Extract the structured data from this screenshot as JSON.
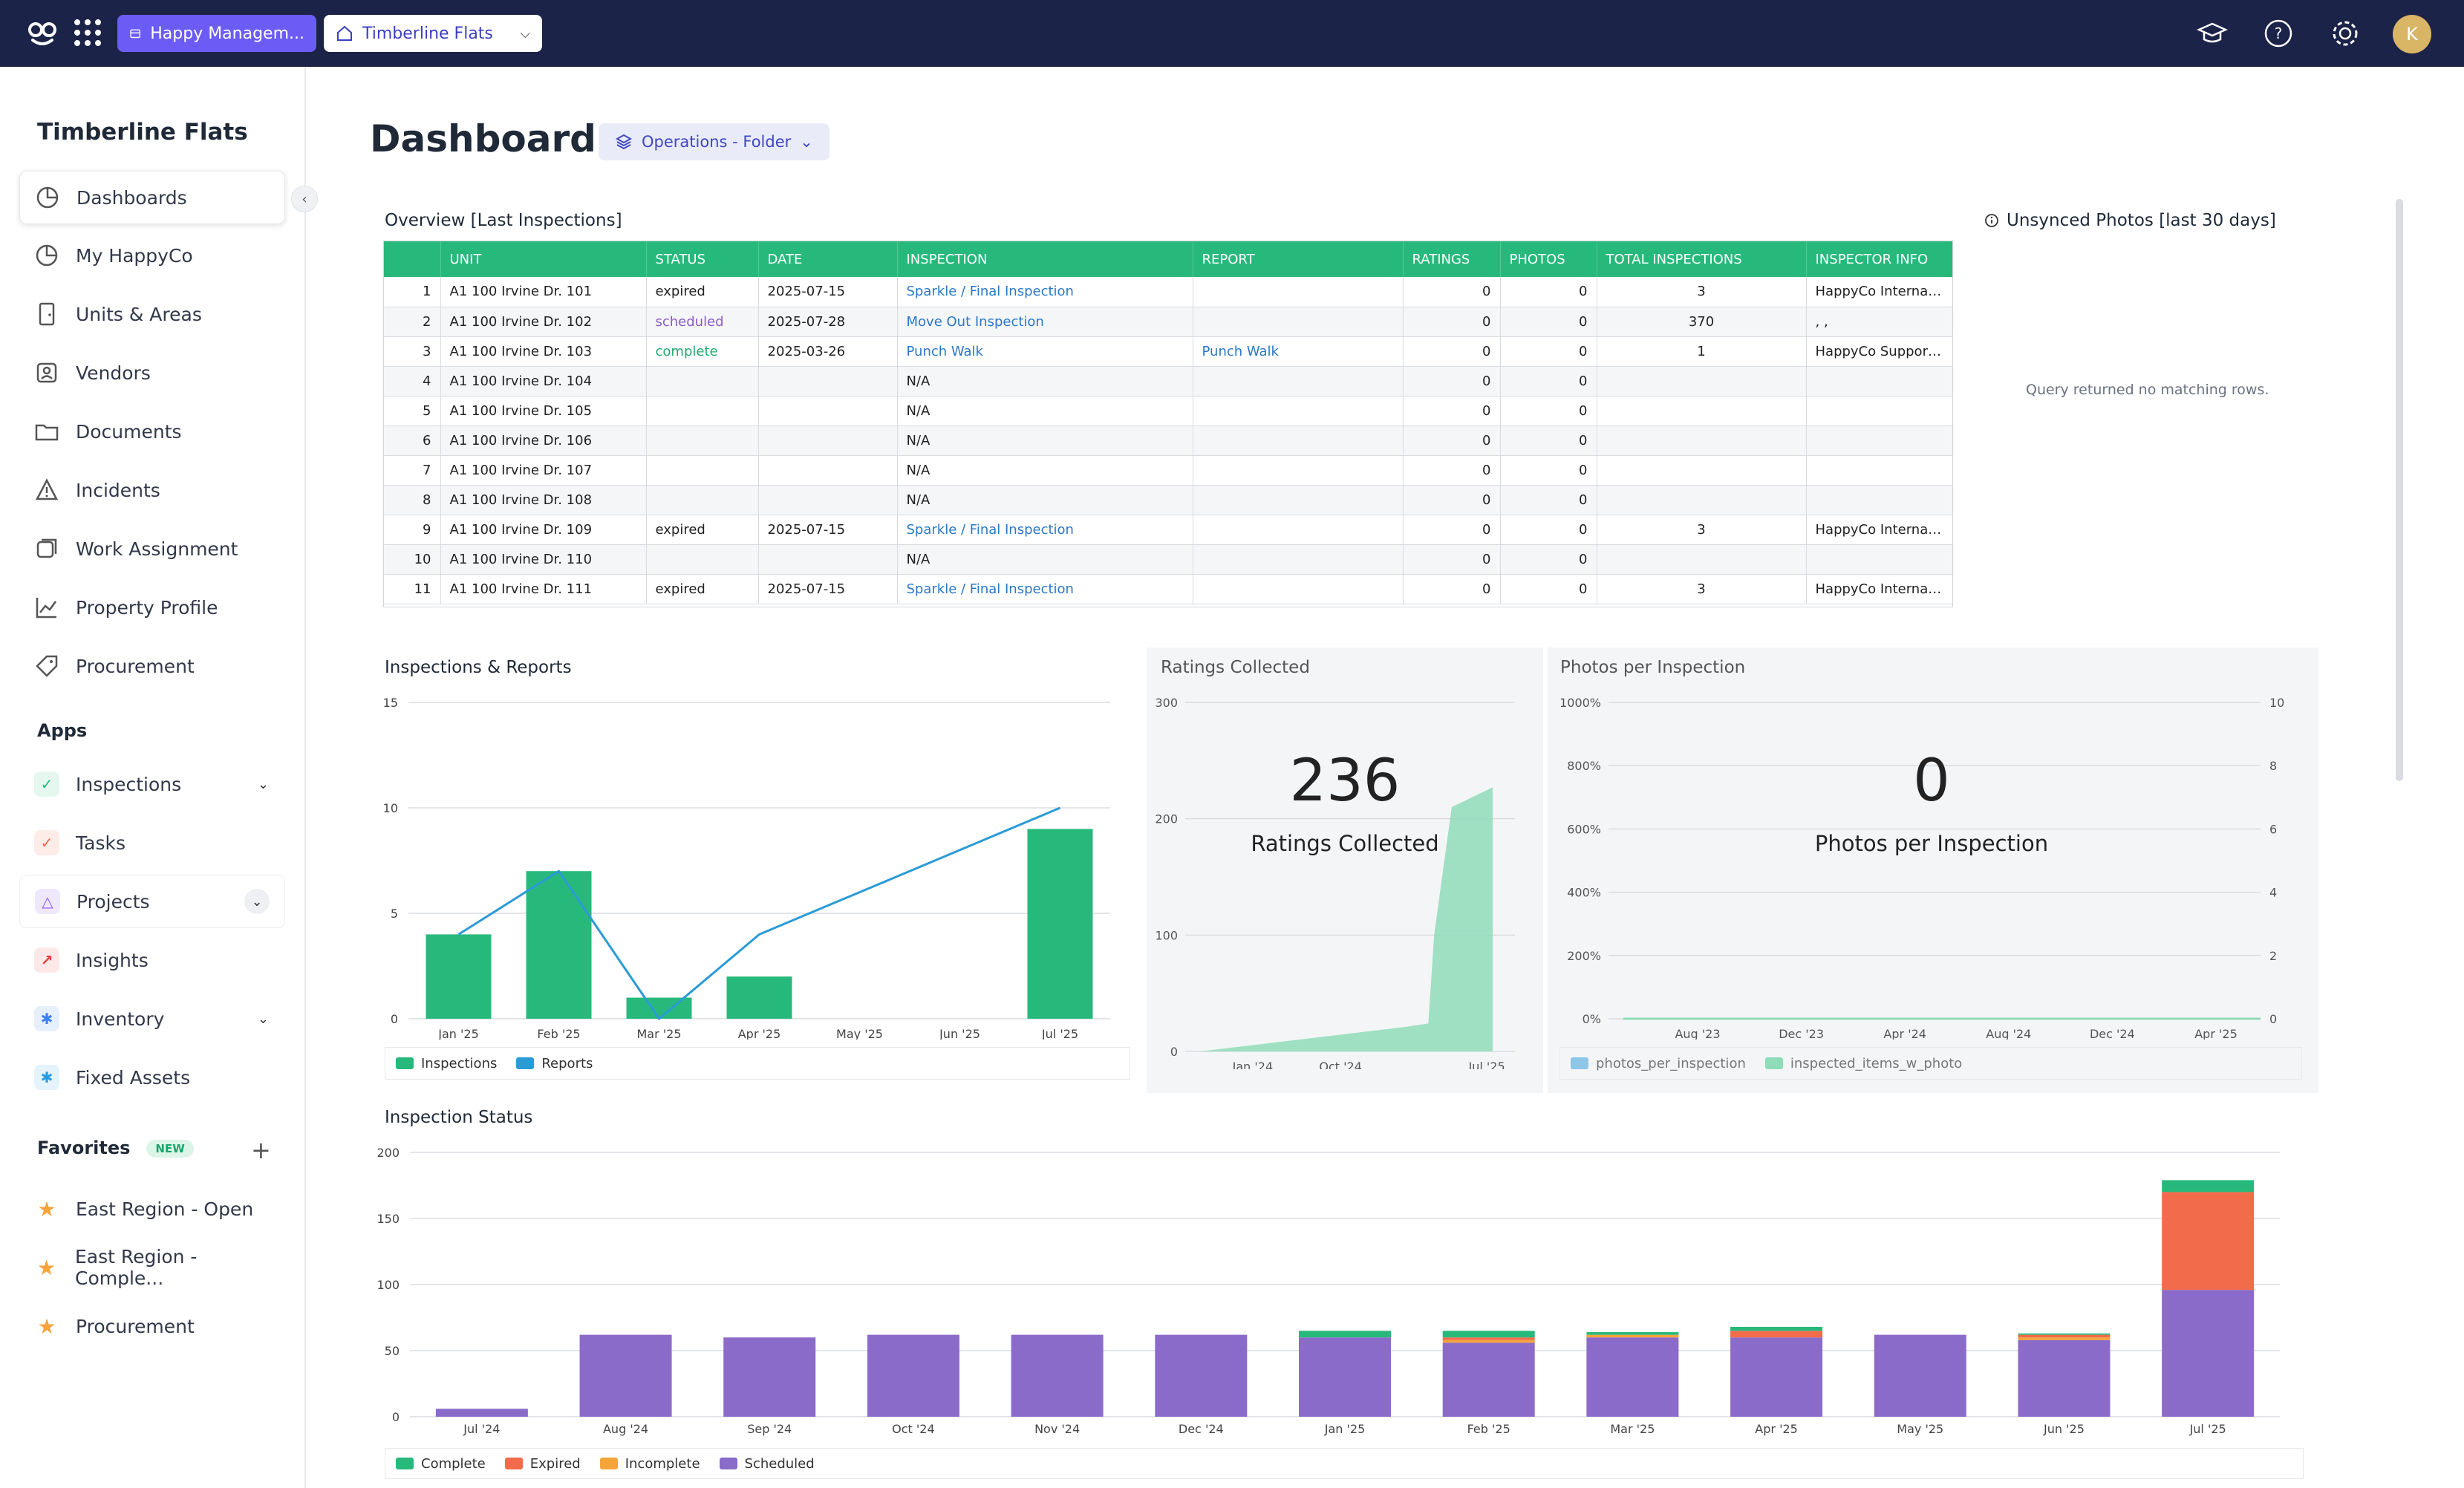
{
  "topbar": {
    "org_name": "Happy Managem...",
    "property_name": "Timberline Flats",
    "avatar_initial": "K"
  },
  "sidebar": {
    "title": "Timberline Flats",
    "nav": [
      {
        "label": "Dashboards"
      },
      {
        "label": "My HappyCo"
      },
      {
        "label": "Units & Areas"
      },
      {
        "label": "Vendors"
      },
      {
        "label": "Documents"
      },
      {
        "label": "Incidents"
      },
      {
        "label": "Work Assignment"
      },
      {
        "label": "Property Profile"
      },
      {
        "label": "Procurement"
      }
    ],
    "apps_label": "Apps",
    "apps": [
      {
        "label": "Inspections",
        "color": "#27b97b"
      },
      {
        "label": "Tasks",
        "color": "#f26b4a"
      },
      {
        "label": "Projects",
        "color": "#8b5cf6"
      },
      {
        "label": "Insights",
        "color": "#e53e3e"
      },
      {
        "label": "Inventory",
        "color": "#3b82f6"
      },
      {
        "label": "Fixed Assets",
        "color": "#2b9be0"
      }
    ],
    "favorites_label": "Favorites",
    "favorites_badge": "NEW",
    "favorites": [
      {
        "label": "East Region - Open"
      },
      {
        "label": "East Region - Comple..."
      },
      {
        "label": "Procurement"
      }
    ]
  },
  "main": {
    "title": "Dashboard",
    "folder_label": "Operations - Folder"
  },
  "overview": {
    "title": "Overview [Last Inspections]",
    "columns": [
      "",
      "UNIT",
      "STATUS",
      "DATE",
      "INSPECTION",
      "REPORT",
      "RATINGS",
      "PHOTOS",
      "TOTAL INSPECTIONS",
      "INSPECTOR INFO"
    ],
    "rows": [
      {
        "n": "1",
        "unit": "A1 100 Irvine Dr. 101",
        "status": "expired",
        "date": "2025-07-15",
        "inspection": "Sparkle / Final Inspection",
        "report": "",
        "ratings": "0",
        "photos": "0",
        "total": "3",
        "inspector": "HappyCo Internal ..."
      },
      {
        "n": "2",
        "unit": "A1 100 Irvine Dr. 102",
        "status": "scheduled",
        "date": "2025-07-28",
        "inspection": "Move Out Inspection",
        "report": "",
        "ratings": "0",
        "photos": "0",
        "total": "370",
        "inspector": ", ,"
      },
      {
        "n": "3",
        "unit": "A1 100 Irvine Dr. 103",
        "status": "complete",
        "date": "2025-03-26",
        "inspection": "Punch Walk",
        "report": "Punch Walk",
        "ratings": "0",
        "photos": "0",
        "total": "1",
        "inspector": "HappyCo Support,..."
      },
      {
        "n": "4",
        "unit": "A1 100 Irvine Dr. 104",
        "status": "",
        "date": "",
        "inspection": "N/A",
        "report": "",
        "ratings": "0",
        "photos": "0",
        "total": "",
        "inspector": ""
      },
      {
        "n": "5",
        "unit": "A1 100 Irvine Dr. 105",
        "status": "",
        "date": "",
        "inspection": "N/A",
        "report": "",
        "ratings": "0",
        "photos": "0",
        "total": "",
        "inspector": ""
      },
      {
        "n": "6",
        "unit": "A1 100 Irvine Dr. 106",
        "status": "",
        "date": "",
        "inspection": "N/A",
        "report": "",
        "ratings": "0",
        "photos": "0",
        "total": "",
        "inspector": ""
      },
      {
        "n": "7",
        "unit": "A1 100 Irvine Dr. 107",
        "status": "",
        "date": "",
        "inspection": "N/A",
        "report": "",
        "ratings": "0",
        "photos": "0",
        "total": "",
        "inspector": ""
      },
      {
        "n": "8",
        "unit": "A1 100 Irvine Dr. 108",
        "status": "",
        "date": "",
        "inspection": "N/A",
        "report": "",
        "ratings": "0",
        "photos": "0",
        "total": "",
        "inspector": ""
      },
      {
        "n": "9",
        "unit": "A1 100 Irvine Dr. 109",
        "status": "expired",
        "date": "2025-07-15",
        "inspection": "Sparkle / Final Inspection",
        "report": "",
        "ratings": "0",
        "photos": "0",
        "total": "3",
        "inspector": "HappyCo Internal ..."
      },
      {
        "n": "10",
        "unit": "A1 100 Irvine Dr. 110",
        "status": "",
        "date": "",
        "inspection": "N/A",
        "report": "",
        "ratings": "0",
        "photos": "0",
        "total": "",
        "inspector": ""
      },
      {
        "n": "11",
        "unit": "A1 100 Irvine Dr. 111",
        "status": "expired",
        "date": "2025-07-15",
        "inspection": "Sparkle / Final Inspection",
        "report": "",
        "ratings": "0",
        "photos": "0",
        "total": "3",
        "inspector": "HappyCo Internal ..."
      }
    ]
  },
  "unsynced": {
    "title": "Unsynced Photos [last 30 days]",
    "empty_message": "Query returned no matching rows."
  },
  "chart_data": [
    {
      "id": "inspections_reports",
      "type": "bar",
      "title": "Inspections & Reports",
      "categories": [
        "Jan '25",
        "Feb '25",
        "Mar '25",
        "Apr '25",
        "May '25",
        "Jun '25",
        "Jul '25"
      ],
      "series": [
        {
          "name": "Inspections",
          "kind": "bar",
          "color": "#27b97b",
          "values": [
            4,
            7,
            1,
            2,
            0,
            0,
            9
          ]
        },
        {
          "name": "Reports",
          "kind": "line",
          "color": "#2b9bd6",
          "points": [
            [
              0,
              4
            ],
            [
              1,
              7
            ],
            [
              2,
              0
            ],
            [
              3,
              4
            ],
            [
              6,
              10
            ]
          ]
        }
      ],
      "yticks": [
        "0",
        "5",
        "10",
        "15"
      ],
      "ylim": [
        0,
        15
      ]
    },
    {
      "id": "ratings_collected",
      "type": "area",
      "title": "Ratings Collected",
      "big_number": "236",
      "big_label": "Ratings Collected",
      "xticks": [
        "Jan '24",
        "Oct '24",
        "Jul '25"
      ],
      "yticks": [
        "0",
        "100",
        "200",
        "300"
      ],
      "ylim": [
        0,
        300
      ],
      "color": "#8fdcb9",
      "points": [
        [
          0,
          0
        ],
        [
          0.1,
          3
        ],
        [
          0.2,
          6
        ],
        [
          0.3,
          9
        ],
        [
          0.4,
          12
        ],
        [
          0.5,
          15
        ],
        [
          0.6,
          18
        ],
        [
          0.7,
          21
        ],
        [
          0.78,
          24
        ],
        [
          0.8,
          100
        ],
        [
          0.86,
          210
        ],
        [
          1,
          227
        ]
      ]
    },
    {
      "id": "photos_per_inspection",
      "type": "line",
      "title": "Photos per Inspection",
      "big_number": "0",
      "big_label": "Photos per Inspection",
      "xticks": [
        "Aug '23",
        "Dec '23",
        "Apr '24",
        "Aug '24",
        "Dec '24",
        "Apr '25"
      ],
      "yticks_left": [
        "0%",
        "200%",
        "400%",
        "600%",
        "800%",
        "1000%"
      ],
      "yticks_right": [
        "0",
        "2",
        "4",
        "6",
        "8",
        "10"
      ],
      "series": [
        {
          "name": "photos_per_inspection",
          "color": "#8ec6e8",
          "values": [
            0,
            0,
            0,
            0,
            0,
            0
          ]
        },
        {
          "name": "inspected_items_w_photo",
          "color": "#8fdcb9",
          "values": [
            0,
            0,
            0,
            0,
            0,
            0
          ]
        }
      ]
    },
    {
      "id": "inspection_status",
      "type": "bar",
      "title": "Inspection Status",
      "categories": [
        "Jul '24",
        "Aug '24",
        "Sep '24",
        "Oct '24",
        "Nov '24",
        "Dec '24",
        "Jan '25",
        "Feb '25",
        "Mar '25",
        "Apr '25",
        "May '25",
        "Jun '25",
        "Jul '25"
      ],
      "series": [
        {
          "name": "Scheduled",
          "color": "#8b6bc9",
          "values": [
            6,
            62,
            60,
            62,
            62,
            62,
            60,
            56,
            60,
            60,
            62,
            58,
            96
          ]
        },
        {
          "name": "Incomplete",
          "color": "#f5a33b",
          "values": [
            0,
            0,
            0,
            0,
            0,
            0,
            0,
            2,
            2,
            0,
            0,
            2,
            0
          ]
        },
        {
          "name": "Expired",
          "color": "#f26b4a",
          "values": [
            0,
            0,
            0,
            0,
            0,
            0,
            0,
            2,
            0,
            5,
            0,
            2,
            74
          ]
        },
        {
          "name": "Complete",
          "color": "#27b97b",
          "values": [
            0,
            0,
            0,
            0,
            0,
            0,
            5,
            5,
            2,
            3,
            0,
            1,
            9
          ]
        }
      ],
      "legend_order": [
        "Complete",
        "Expired",
        "Incomplete",
        "Scheduled"
      ],
      "yticks": [
        "0",
        "50",
        "100",
        "150",
        "200"
      ],
      "ylim": [
        0,
        200
      ]
    }
  ]
}
